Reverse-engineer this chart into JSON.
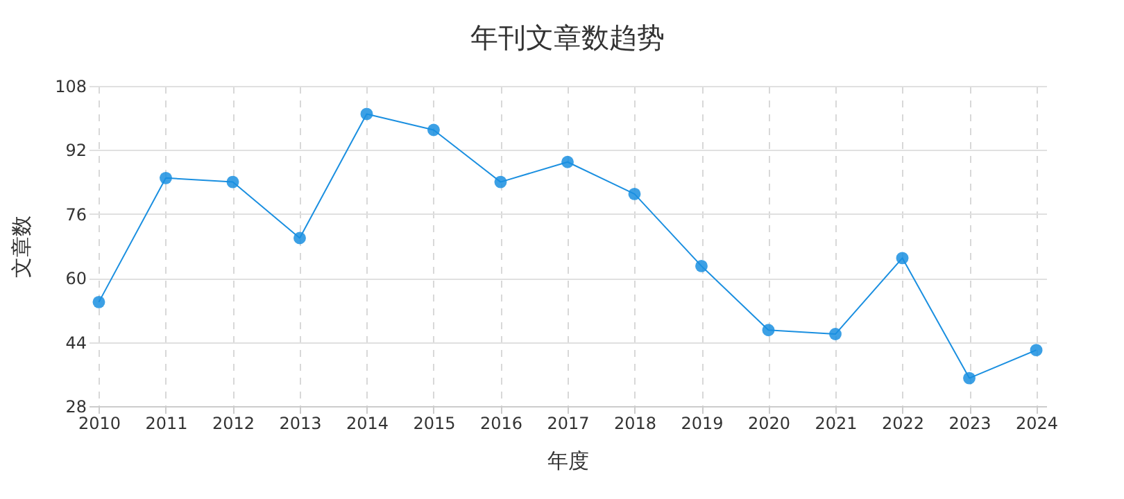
{
  "chart_data": {
    "type": "line",
    "title": "年刊文章数趋势",
    "xlabel": "年度",
    "ylabel": "文章数",
    "categories": [
      "2010",
      "2011",
      "2012",
      "2013",
      "2014",
      "2015",
      "2016",
      "2017",
      "2018",
      "2019",
      "2020",
      "2021",
      "2022",
      "2023",
      "2024"
    ],
    "series": [
      {
        "color": "#1a8fe0",
        "values": [
          54,
          85,
          84,
          70,
          101,
          97,
          84,
          89,
          81,
          63,
          47,
          46,
          65,
          35,
          42
        ]
      }
    ],
    "ylim": [
      28,
      108
    ],
    "yticks": [
      28,
      44,
      60,
      76,
      92,
      108
    ],
    "grid": true,
    "marker": "circle",
    "line_style": "solid"
  }
}
